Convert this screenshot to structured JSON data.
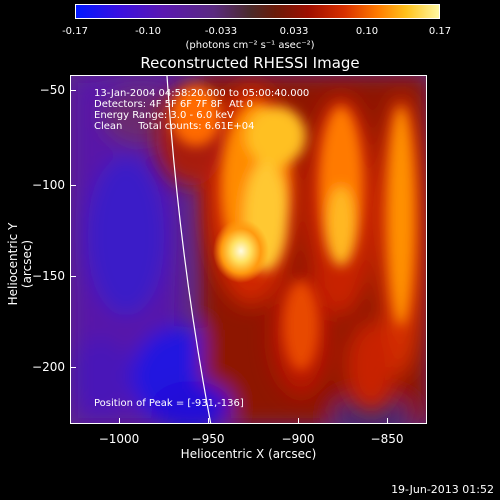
{
  "colorbar": {
    "ticks": [
      "-0.17",
      "-0.10",
      "-0.033",
      "0.033",
      "0.10",
      "0.17"
    ],
    "unit_label": "(photons cm⁻² s⁻¹ asec⁻²)"
  },
  "chart_data": {
    "type": "heatmap",
    "title": "Reconstructed RHESSI Image",
    "xlabel": "Heliocentric X (arcsec)",
    "ylabel": "Heliocentric Y (arcsec)",
    "x_ticks": [
      "−1000",
      "−950",
      "−900",
      "−850"
    ],
    "y_ticks": [
      "−50",
      "−100",
      "−150",
      "−200"
    ],
    "x_tick_values": [
      -1000,
      -950,
      -900,
      -850
    ],
    "y_tick_values": [
      -50,
      -100,
      -150,
      -200
    ],
    "xlim": [
      -1022,
      -830
    ],
    "ylim": [
      -232,
      -40
    ],
    "colorbar_range": [
      -0.17,
      0.17
    ],
    "peak": [
      -931,
      -136
    ],
    "annotations": [
      "13-Jan-2004 04:58:20.000 to 05:00:40.000",
      "Detectors: 4F 5F 6F 7F 8F  Att 0",
      "Energy Range: 3.0 - 6.0 keV",
      "Clean     Total counts: 6.61E+04"
    ],
    "peak_label": "Position of Peak = [-931,-136]"
  },
  "footer": {
    "date": "19-Jun-2013 01:52"
  }
}
